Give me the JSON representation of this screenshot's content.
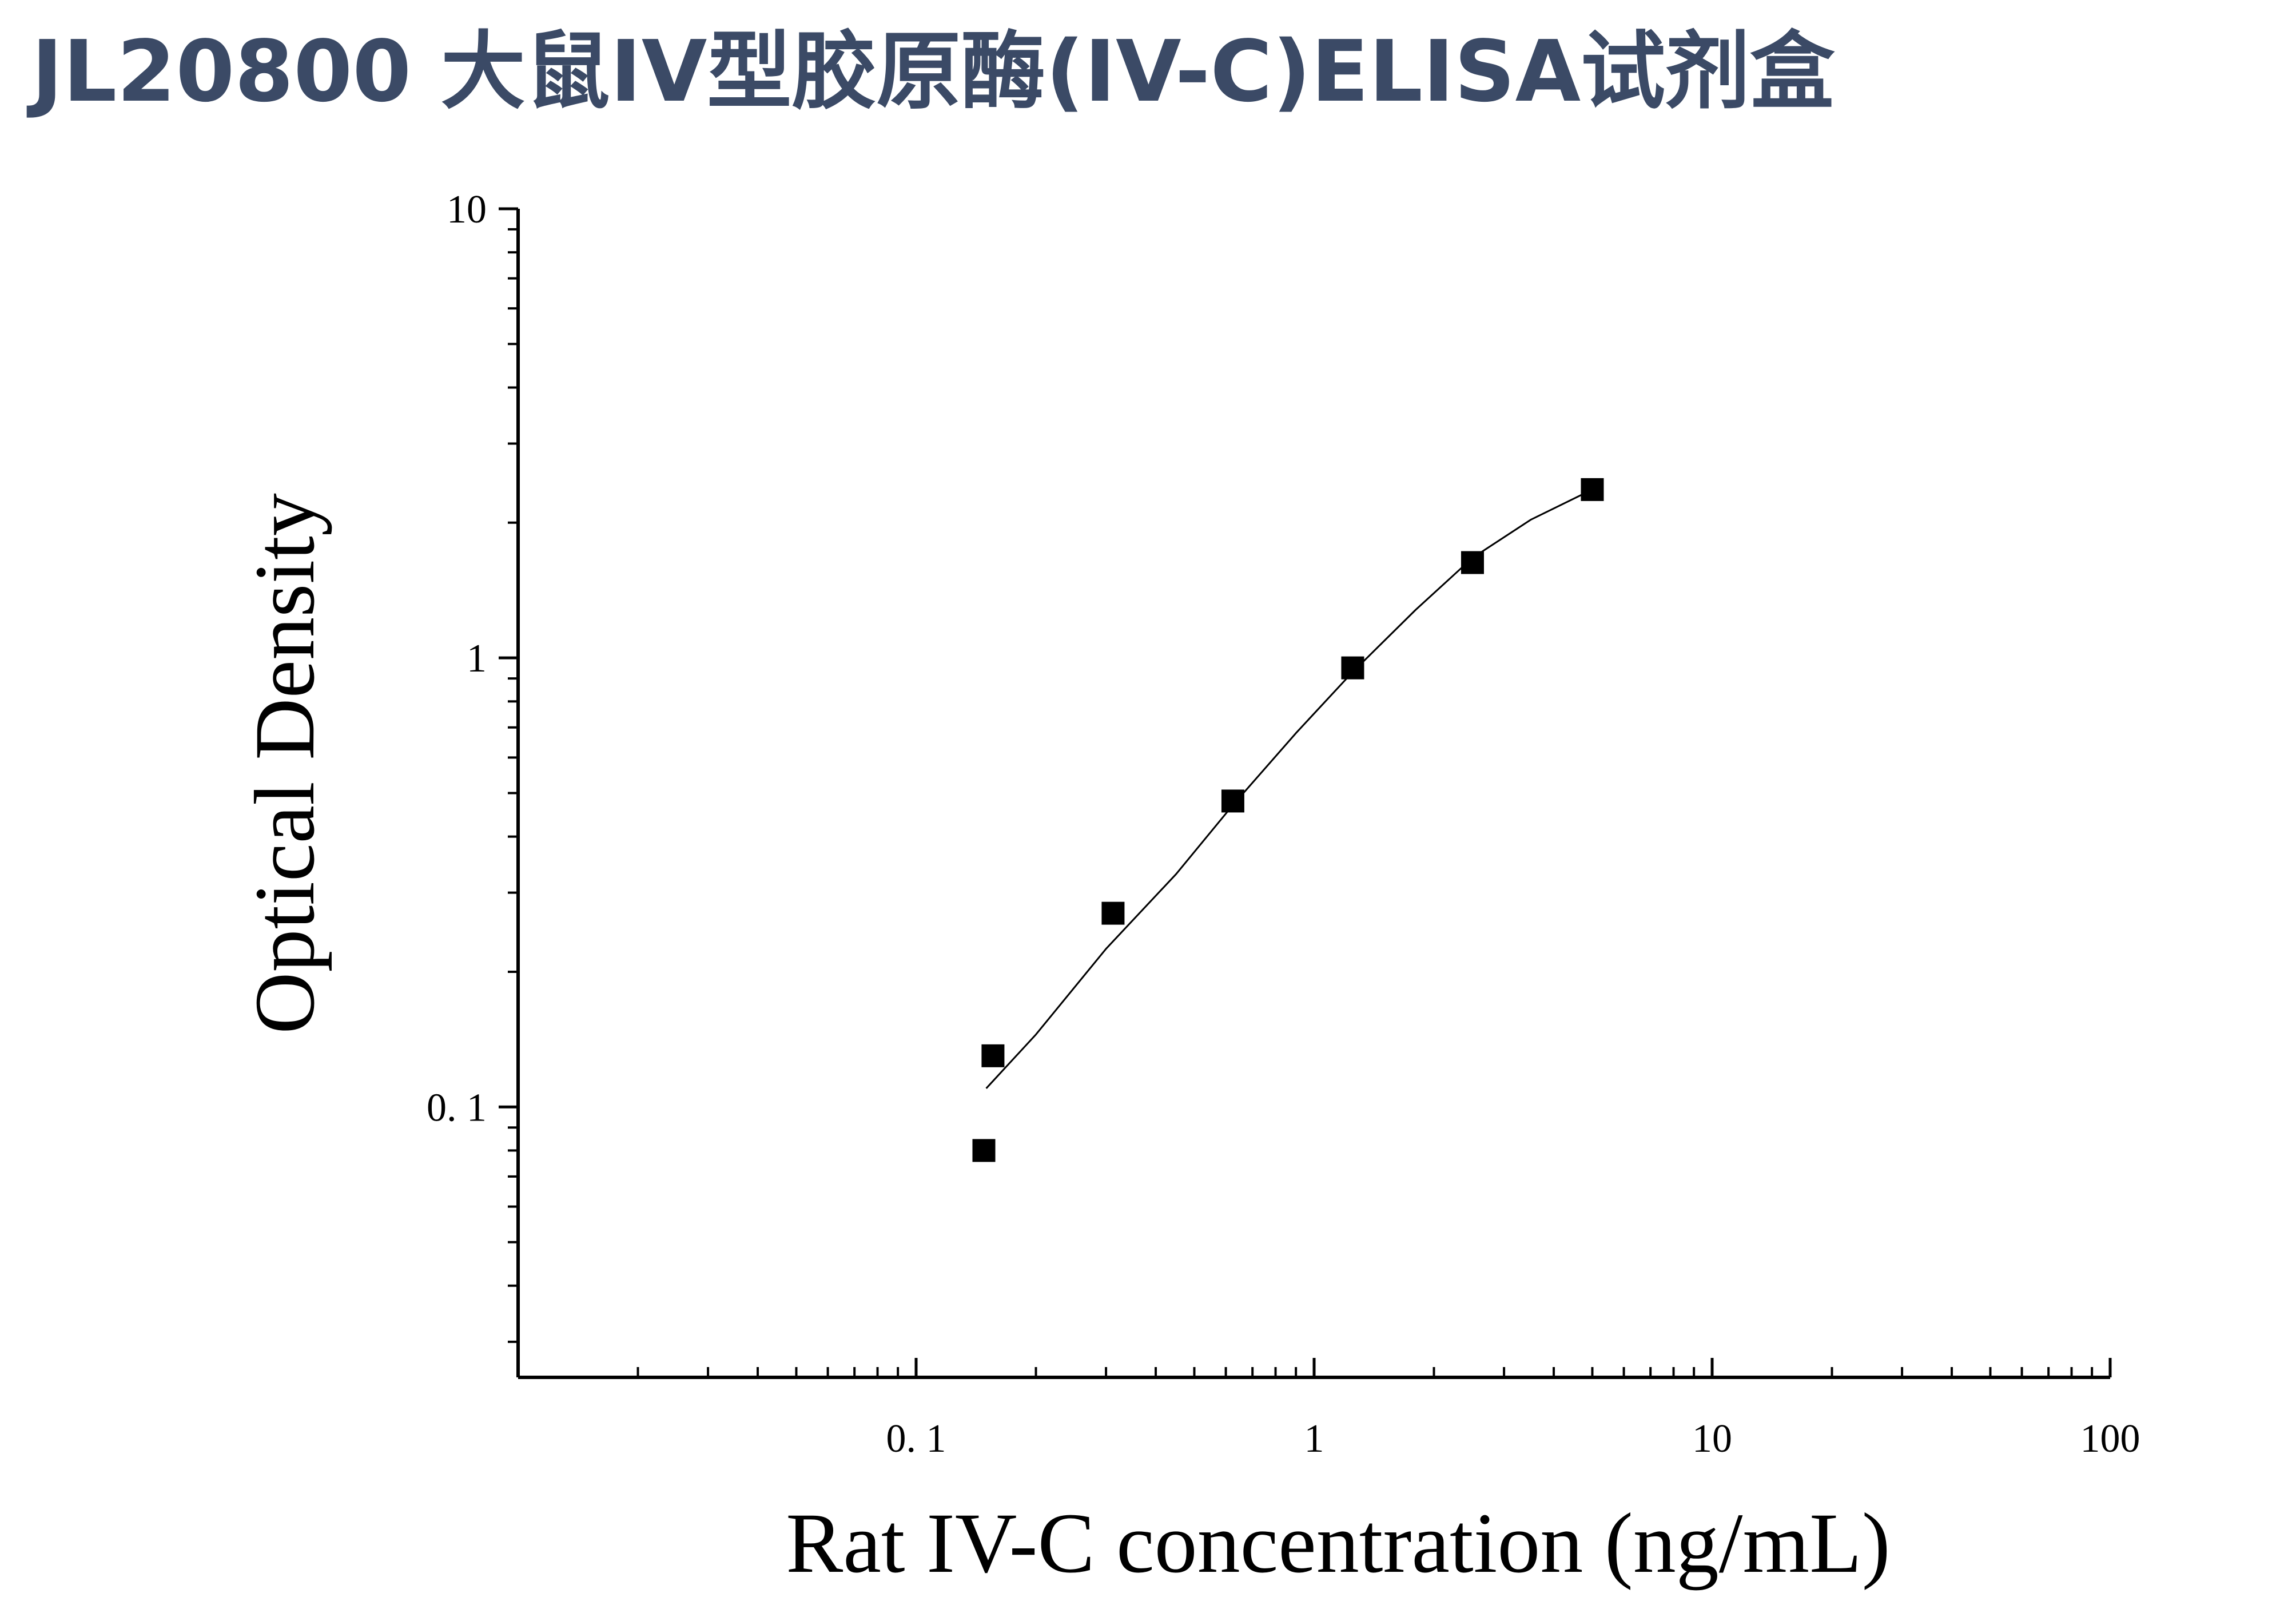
{
  "page": {
    "title": "JL20800 大鼠IV型胶原酶(IV-C)ELISA试剂盒"
  },
  "colors": {
    "title": "#3b4a66",
    "axis": "#000000",
    "marker": "#000000",
    "curve": "#000000"
  },
  "chart_data": {
    "type": "scatter",
    "title": "",
    "xlabel": "Rat IV-C concentration (ng/mL)",
    "ylabel": "Optical Density",
    "xscale": "log",
    "yscale": "log",
    "xlim": [
      0.01,
      100
    ],
    "ylim": [
      0.025,
      10
    ],
    "xticks": [
      0.1,
      1,
      10,
      100
    ],
    "xtick_labels": [
      "0. 1",
      "1",
      "10",
      "100"
    ],
    "yticks": [
      0.1,
      1,
      10
    ],
    "ytick_labels": [
      "0. 1",
      "1",
      "10"
    ],
    "grid": false,
    "legend": "none",
    "series": [
      {
        "marker": "square",
        "x": [
          0.148,
          0.156,
          0.3125,
          0.625,
          1.25,
          2.5,
          5
        ],
        "y": [
          0.08,
          0.13,
          0.27,
          0.48,
          0.95,
          1.63,
          2.37
        ]
      }
    ],
    "fit_curve": {
      "x": [
        0.15,
        0.2,
        0.3,
        0.45,
        0.625,
        0.9,
        1.25,
        1.8,
        2.5,
        3.5,
        5
      ],
      "y": [
        0.11,
        0.145,
        0.225,
        0.33,
        0.47,
        0.68,
        0.93,
        1.28,
        1.67,
        2.03,
        2.37
      ]
    }
  }
}
